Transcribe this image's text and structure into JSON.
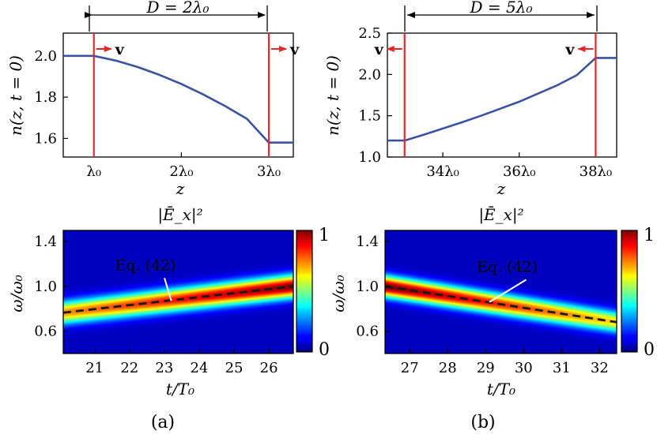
{
  "chart_data": [
    {
      "type": "line",
      "panel": "(a) top",
      "title": "D = 2λ₀",
      "xlabel": "z",
      "ylabel": "n(z, t = 0)",
      "x_unit": "λ₀",
      "xlim": [
        0.65,
        3.28
      ],
      "ylim": [
        1.51,
        2.11
      ],
      "xticks": [
        1,
        2,
        3
      ],
      "xtick_labels": [
        "λ₀",
        "2λ₀",
        "3λ₀"
      ],
      "yticks": [
        1.6,
        1.8,
        2.0
      ],
      "ytick_labels": [
        "1.6",
        "1.8",
        "2.0"
      ],
      "series": [
        {
          "x": [
            0.65,
            1.0,
            1.25,
            1.5,
            1.75,
            2.0,
            2.25,
            2.5,
            2.75,
            3.0,
            3.28
          ],
          "y": [
            2.0,
            2.0,
            1.977,
            1.946,
            1.908,
            1.864,
            1.813,
            1.757,
            1.695,
            1.58,
            1.58
          ]
        }
      ],
      "interfaces": [
        1.0,
        3.0
      ],
      "velocity_label": "v",
      "velocity_arrows": [
        "right",
        "right"
      ]
    },
    {
      "type": "line",
      "panel": "(b) top",
      "title": "D = 5λ₀",
      "xlabel": "z",
      "ylabel": "n(z, t = 0)",
      "x_unit": "λ₀",
      "xlim": [
        32.55,
        38.55
      ],
      "ylim": [
        1.0,
        2.5
      ],
      "xticks": [
        34,
        36,
        38
      ],
      "xtick_labels": [
        "34λ₀",
        "36λ₀",
        "38λ₀"
      ],
      "yticks": [
        1.0,
        1.5,
        2.0,
        2.5
      ],
      "ytick_labels": [
        "1.0",
        "1.5",
        "2.0",
        "2.5"
      ],
      "series": [
        {
          "x": [
            32.55,
            33.0,
            33.5,
            34.0,
            34.5,
            35.0,
            35.5,
            36.0,
            36.5,
            37.0,
            37.5,
            38.0,
            38.55
          ],
          "y": [
            1.2,
            1.2,
            1.27,
            1.345,
            1.42,
            1.5,
            1.585,
            1.67,
            1.77,
            1.87,
            1.99,
            2.2,
            2.2
          ]
        }
      ],
      "interfaces": [
        33.0,
        38.0
      ],
      "velocity_label": "v",
      "velocity_arrows": [
        "left",
        "left"
      ]
    },
    {
      "type": "heatmap",
      "panel": "(a)",
      "caption": "(a)",
      "title": "|Ē_x|²",
      "xlabel": "t/T₀",
      "ylabel": "ω/ω₀",
      "xlim": [
        20.1,
        26.7
      ],
      "ylim": [
        0.4,
        1.5
      ],
      "xticks": [
        21,
        22,
        23,
        24,
        25,
        26
      ],
      "yticks": [
        0.6,
        1.0,
        1.4
      ],
      "ytick_labels": [
        "0.6",
        "1.0",
        "1.4"
      ],
      "ridge": {
        "x": [
          20.1,
          26.7
        ],
        "y": [
          0.765,
          1.0
        ],
        "width": 0.07,
        "amp_start": 0.7,
        "amp_end": 0.98
      },
      "dashed_line": {
        "x": [
          20.1,
          26.7
        ],
        "y": [
          0.765,
          1.0
        ]
      },
      "annotation": {
        "text": "Eq. (42)",
        "point": [
          23.2,
          0.87
        ],
        "label_at": [
          22.55,
          1.145
        ]
      },
      "colorbar": {
        "min": 0,
        "max": 1,
        "labels": [
          "0",
          "1"
        ],
        "colormap": "jet"
      }
    },
    {
      "type": "heatmap",
      "panel": "(b)",
      "caption": "(b)",
      "title": "|Ē_x|²",
      "xlabel": "t/T₀",
      "ylabel": "ω/ω₀",
      "xlim": [
        26.35,
        32.45
      ],
      "ylim": [
        0.4,
        1.5
      ],
      "xticks": [
        27,
        28,
        29,
        30,
        31,
        32
      ],
      "yticks": [
        0.6,
        1.0,
        1.4
      ],
      "ytick_labels": [
        "0.6",
        "1.0",
        "1.4"
      ],
      "ridge": {
        "x": [
          26.35,
          32.45
        ],
        "y": [
          1.0,
          0.68
        ],
        "width": 0.065,
        "amp_start": 1.0,
        "amp_end": 0.62
      },
      "dashed_line": {
        "x": [
          26.35,
          32.45
        ],
        "y": [
          1.0,
          0.68
        ]
      },
      "annotation": {
        "text": "Eq. (42)",
        "point": [
          29.1,
          0.86
        ],
        "label_at": [
          29.65,
          1.13
        ]
      },
      "colorbar": {
        "min": 0,
        "max": 1,
        "labels": [
          "0",
          "1"
        ],
        "colormap": "jet"
      }
    }
  ],
  "colors": {
    "curve": "#3a52a0",
    "interface": "#e8262a",
    "arrow": "#e8262a",
    "dash": "#1a1a1a"
  }
}
